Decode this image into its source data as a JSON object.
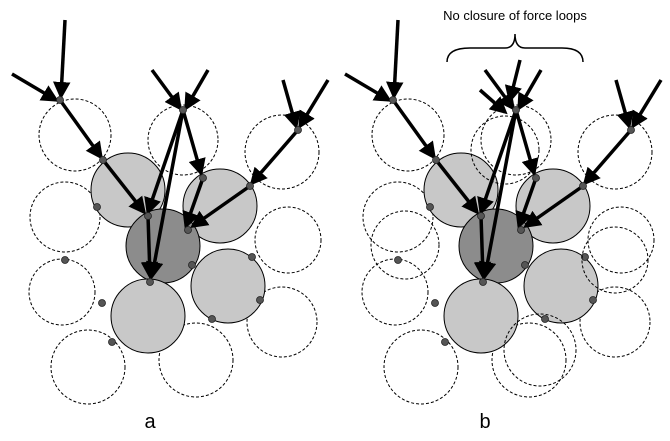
{
  "annotation": "No closure of force loops",
  "panels": [
    {
      "label": "a"
    },
    {
      "label": "b"
    }
  ]
}
